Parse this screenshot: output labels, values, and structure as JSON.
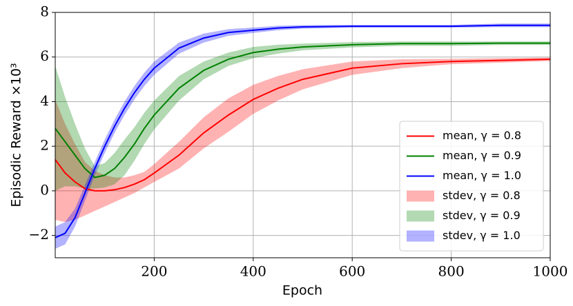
{
  "chart_data": {
    "type": "line",
    "x_label": "Epoch",
    "y_label": "Episodic Reward ×10³",
    "x": [
      0,
      20,
      40,
      60,
      80,
      100,
      120,
      140,
      160,
      180,
      200,
      250,
      300,
      350,
      400,
      450,
      500,
      600,
      700,
      800,
      900,
      1000
    ],
    "xlim": [
      0,
      1000
    ],
    "ylim": [
      -3,
      8
    ],
    "xticks": [
      200,
      400,
      600,
      800,
      1000
    ],
    "yticks": [
      {
        "value": -2,
        "label": "−2"
      },
      0,
      2,
      4,
      6,
      8
    ],
    "grid": true,
    "legend": "lower right",
    "series": [
      {
        "name": "mean, γ = 0.8",
        "color": "#ff0000",
        "values": [
          1.4,
          0.8,
          0.4,
          0.1,
          0.0,
          0.0,
          0.05,
          0.15,
          0.3,
          0.5,
          0.8,
          1.6,
          2.6,
          3.4,
          4.1,
          4.6,
          5.0,
          5.5,
          5.7,
          5.8,
          5.85,
          5.9
        ]
      },
      {
        "name": "mean, γ = 0.9",
        "color": "#008000",
        "values": [
          2.8,
          2.2,
          1.6,
          1.0,
          0.6,
          0.7,
          1.0,
          1.5,
          2.1,
          2.8,
          3.4,
          4.6,
          5.4,
          5.9,
          6.2,
          6.35,
          6.45,
          6.55,
          6.6,
          6.6,
          6.62,
          6.62
        ]
      },
      {
        "name": "mean, γ = 1.0",
        "color": "#0000ff",
        "values": [
          -2.1,
          -1.9,
          -1.2,
          -0.1,
          1.0,
          2.0,
          2.9,
          3.7,
          4.4,
          5.0,
          5.5,
          6.4,
          6.85,
          7.1,
          7.2,
          7.3,
          7.35,
          7.38,
          7.38,
          7.38,
          7.42,
          7.42
        ]
      }
    ],
    "bands": [
      {
        "name": "stdev, γ = 0.8",
        "color": "#ff0000",
        "alpha": 0.3,
        "lower": [
          -1.3,
          -1.4,
          -1.3,
          -1.1,
          -0.9,
          -0.7,
          -0.5,
          -0.3,
          -0.1,
          0.15,
          0.4,
          1.0,
          1.9,
          2.65,
          3.45,
          4.05,
          4.55,
          5.2,
          5.5,
          5.68,
          5.75,
          5.82
        ],
        "upper": [
          4.1,
          3.0,
          2.1,
          1.3,
          0.9,
          0.7,
          0.6,
          0.6,
          0.7,
          0.85,
          1.2,
          2.2,
          3.3,
          4.15,
          4.75,
          5.15,
          5.45,
          5.8,
          5.9,
          5.92,
          5.95,
          5.98
        ]
      },
      {
        "name": "stdev, γ = 0.9",
        "color": "#008000",
        "alpha": 0.3,
        "lower": [
          0.0,
          0.2,
          0.2,
          0.1,
          0.1,
          0.15,
          0.3,
          0.7,
          1.35,
          2.1,
          2.75,
          4.05,
          5.0,
          5.6,
          5.95,
          6.15,
          6.3,
          6.43,
          6.5,
          6.5,
          6.54,
          6.54
        ],
        "upper": [
          5.6,
          4.2,
          3.0,
          1.9,
          1.1,
          1.25,
          1.7,
          2.3,
          2.85,
          3.5,
          4.05,
          5.15,
          5.8,
          6.2,
          6.45,
          6.55,
          6.6,
          6.67,
          6.7,
          6.7,
          6.7,
          6.7
        ]
      },
      {
        "name": "stdev, γ = 1.0",
        "color": "#0000ff",
        "alpha": 0.3,
        "lower": [
          -2.6,
          -2.4,
          -1.6,
          -0.45,
          0.7,
          1.7,
          2.6,
          3.4,
          4.1,
          4.7,
          5.2,
          6.15,
          6.65,
          6.95,
          7.08,
          7.2,
          7.27,
          7.32,
          7.32,
          7.32,
          7.34,
          7.34
        ],
        "upper": [
          -1.6,
          -1.4,
          -0.8,
          0.25,
          1.3,
          2.3,
          3.2,
          4.0,
          4.7,
          5.3,
          5.8,
          6.65,
          7.05,
          7.25,
          7.32,
          7.4,
          7.43,
          7.44,
          7.44,
          7.44,
          7.5,
          7.5
        ]
      }
    ]
  }
}
